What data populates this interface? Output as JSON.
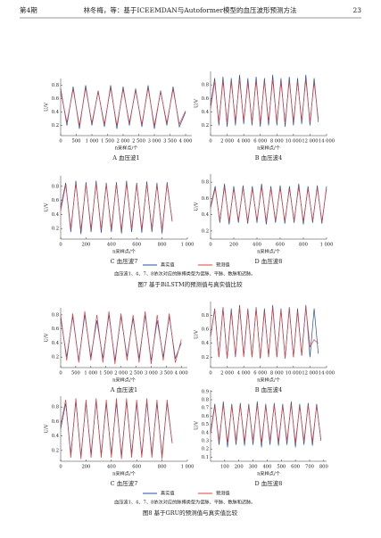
{
  "header": {
    "issue": "第4期",
    "title": "林冬梅，等：基于ICEEMDAN与Autoformer模型的血压波形预测方法",
    "page": "23"
  },
  "figures": [
    {
      "note": "血压波1、4、7、8依次对应的脉搏类型为促脉、平脉、数脉和迟脉。",
      "caption": "图7   基于BiLSTM的预测值与真实值比较"
    },
    {
      "note": "血压波1、4、7、8依次对应的脉搏类型为促脉、平脉、数脉和迟脉。",
      "caption": "图8   基于GRU的预测值与真实值比较"
    }
  ],
  "chart_data": [
    {
      "type": "line",
      "caption": "A   血压波1",
      "x_label": "n采样点/个",
      "y_label": "U/V",
      "x": [
        0,
        200,
        400,
        600,
        800,
        1000,
        1200,
        1400,
        1600,
        1800,
        2000,
        2200,
        2400,
        2600,
        2800,
        3000,
        3200,
        3400,
        3600,
        3800,
        4000
      ],
      "series": [
        {
          "name": "真实值",
          "color": "#2b4fa0",
          "values": [
            0.75,
            0.2,
            0.78,
            0.15,
            0.8,
            0.2,
            0.72,
            0.18,
            0.8,
            0.15,
            0.78,
            0.2,
            0.75,
            0.18,
            0.8,
            0.15,
            0.72,
            0.2,
            0.78,
            0.18,
            0.4
          ]
        },
        {
          "name": "预测值",
          "color": "#e0413f",
          "values": [
            0.7,
            0.25,
            0.74,
            0.2,
            0.76,
            0.24,
            0.7,
            0.22,
            0.76,
            0.2,
            0.74,
            0.24,
            0.72,
            0.22,
            0.76,
            0.2,
            0.7,
            0.24,
            0.74,
            0.22,
            0.42
          ]
        }
      ],
      "xlim": [
        0,
        4200
      ],
      "ylim": [
        0.05,
        0.9
      ],
      "xticks": [
        0,
        500,
        {
          "value": 1000,
          "label": "1 000"
        },
        {
          "value": 1500,
          "label": "1 500"
        },
        {
          "value": 2000,
          "label": "2 000"
        },
        {
          "value": 2500,
          "label": "2 500"
        },
        {
          "value": 3000,
          "label": "3 000"
        },
        {
          "value": 3500,
          "label": "3 500"
        },
        {
          "value": 4000,
          "label": "4 000"
        }
      ],
      "yticks": [
        0.2,
        0.4,
        0.6,
        0.8
      ]
    },
    {
      "type": "line",
      "caption": "B   血压波4",
      "x_label": "n采样点/个",
      "y_label": "U/V",
      "x": [
        0,
        500,
        1000,
        1500,
        2000,
        2500,
        3000,
        3500,
        4000,
        4500,
        5000,
        5500,
        6000,
        6500,
        7000,
        7500,
        8000,
        8500,
        9000,
        9500,
        10000,
        10500,
        11000,
        11500,
        12000,
        12500,
        13000
      ],
      "series": [
        {
          "name": "真实值",
          "color": "#2b4fa0",
          "values": [
            0.5,
            0.9,
            0.2,
            0.92,
            0.18,
            0.9,
            0.2,
            0.95,
            0.22,
            0.9,
            0.2,
            0.92,
            0.18,
            0.9,
            0.2,
            0.95,
            0.2,
            0.9,
            0.18,
            0.92,
            0.2,
            0.9,
            0.22,
            0.95,
            0.2,
            0.9,
            0.25
          ]
        },
        {
          "name": "预测值",
          "color": "#e0413f",
          "values": [
            0.45,
            0.85,
            0.25,
            0.86,
            0.24,
            0.85,
            0.26,
            0.88,
            0.27,
            0.84,
            0.25,
            0.86,
            0.24,
            0.85,
            0.26,
            0.88,
            0.25,
            0.84,
            0.24,
            0.86,
            0.26,
            0.85,
            0.27,
            0.88,
            0.25,
            0.84,
            0.3
          ]
        }
      ],
      "xlim": [
        0,
        14000
      ],
      "ylim": [
        0.05,
        1.0
      ],
      "xticks": [
        0,
        {
          "value": 2000,
          "label": "2 000"
        },
        {
          "value": 4000,
          "label": "4 000"
        },
        {
          "value": 6000,
          "label": "6 000"
        },
        {
          "value": 8000,
          "label": "8 000"
        },
        {
          "value": 10000,
          "label": "10 000"
        },
        {
          "value": 12000,
          "label": "12 000"
        },
        {
          "value": 14000,
          "label": "14 000"
        }
      ],
      "yticks": [
        0.2,
        0.4,
        0.6,
        0.8
      ]
    },
    {
      "type": "line",
      "caption": "C   血压波7",
      "x_label": "n采样点/个",
      "y_label": "U/V",
      "x": [
        0,
        40,
        80,
        120,
        160,
        200,
        240,
        280,
        320,
        360,
        400,
        440,
        480,
        520,
        560,
        600,
        640,
        680,
        720,
        760,
        800,
        840,
        880
      ],
      "series": [
        {
          "name": "真实值",
          "color": "#2b4fa0",
          "values": [
            0.5,
            0.85,
            0.15,
            0.88,
            0.12,
            0.86,
            0.15,
            0.88,
            0.14,
            0.85,
            0.15,
            0.86,
            0.13,
            0.88,
            0.15,
            0.85,
            0.14,
            0.87,
            0.15,
            0.85,
            0.13,
            0.86,
            0.3
          ]
        },
        {
          "name": "预测值",
          "color": "#e0413f",
          "values": [
            0.45,
            0.82,
            0.2,
            0.84,
            0.18,
            0.83,
            0.2,
            0.84,
            0.19,
            0.82,
            0.2,
            0.83,
            0.18,
            0.84,
            0.2,
            0.82,
            0.19,
            0.83,
            0.2,
            0.82,
            0.18,
            0.83,
            0.32
          ]
        }
      ],
      "xlim": [
        0,
        1000
      ],
      "ylim": [
        0.05,
        0.95
      ],
      "xticks": [
        0,
        200,
        400,
        600,
        800,
        {
          "value": 1000,
          "label": "1 000"
        }
      ],
      "yticks": [
        0.2,
        0.4,
        0.6,
        0.8
      ]
    },
    {
      "type": "line",
      "caption": "D   血压波8",
      "x_label": "n采样点/个",
      "y_label": "U/V",
      "x": [
        0,
        40,
        80,
        120,
        160,
        200,
        240,
        280,
        320,
        360,
        400,
        440,
        480,
        520,
        560,
        600,
        640,
        680,
        720,
        760,
        800,
        840,
        880,
        920,
        960,
        1000
      ],
      "series": [
        {
          "name": "真实值",
          "color": "#2b4fa0",
          "values": [
            0.5,
            0.75,
            0.3,
            0.78,
            0.28,
            0.75,
            0.3,
            0.76,
            0.29,
            0.75,
            0.3,
            0.78,
            0.28,
            0.75,
            0.3,
            0.76,
            0.29,
            0.75,
            0.3,
            0.78,
            0.28,
            0.75,
            0.3,
            0.76,
            0.29,
            0.75
          ]
        },
        {
          "name": "预测值",
          "color": "#e0413f",
          "values": [
            0.48,
            0.72,
            0.33,
            0.74,
            0.32,
            0.72,
            0.33,
            0.73,
            0.32,
            0.72,
            0.33,
            0.74,
            0.32,
            0.72,
            0.33,
            0.73,
            0.32,
            0.72,
            0.33,
            0.74,
            0.32,
            0.72,
            0.33,
            0.73,
            0.32,
            0.72
          ]
        }
      ],
      "xlim": [
        0,
        1000
      ],
      "ylim": [
        0.1,
        0.9
      ],
      "xticks": [
        0,
        200,
        400,
        600,
        800,
        {
          "value": 1000,
          "label": "1 000"
        }
      ],
      "yticks": [
        0.2,
        0.4,
        0.6,
        0.8
      ]
    },
    {
      "type": "line",
      "caption": "A   血压波1",
      "x_label": "n采样点/个",
      "y_label": "U/V",
      "x": [
        0,
        200,
        400,
        600,
        800,
        1000,
        1200,
        1400,
        1600,
        1800,
        2000,
        2200,
        2400,
        2600,
        2800,
        3000,
        3200,
        3400,
        3600,
        3800,
        4000
      ],
      "series": [
        {
          "name": "真实值",
          "color": "#2b4fa0",
          "values": [
            0.75,
            0.2,
            0.78,
            0.15,
            0.8,
            0.2,
            0.72,
            0.18,
            0.8,
            0.15,
            0.78,
            0.2,
            0.75,
            0.18,
            0.8,
            0.15,
            0.72,
            0.2,
            0.78,
            0.18,
            0.4
          ]
        },
        {
          "name": "预测值",
          "color": "#e0413f",
          "values": [
            0.8,
            0.15,
            0.82,
            0.12,
            0.85,
            0.15,
            0.8,
            0.12,
            0.85,
            0.1,
            0.82,
            0.15,
            0.8,
            0.12,
            0.85,
            0.1,
            0.8,
            0.15,
            0.82,
            0.12,
            0.45
          ]
        }
      ],
      "xlim": [
        0,
        4200
      ],
      "ylim": [
        0.05,
        0.9
      ],
      "xticks": [
        0,
        500,
        {
          "value": 1000,
          "label": "1 000"
        },
        {
          "value": 1500,
          "label": "1 500"
        },
        {
          "value": 2000,
          "label": "2 000"
        },
        {
          "value": 2500,
          "label": "2 500"
        },
        {
          "value": 3000,
          "label": "3 000"
        },
        {
          "value": 3500,
          "label": "3 500"
        },
        {
          "value": 4000,
          "label": "4 000"
        }
      ],
      "yticks": [
        0.2,
        0.4,
        0.6,
        0.8
      ]
    },
    {
      "type": "line",
      "caption": "B   血压波4",
      "x_label": "n采样点/个",
      "y_label": "U/V",
      "x": [
        0,
        500,
        1000,
        1500,
        2000,
        2500,
        3000,
        3500,
        4000,
        4500,
        5000,
        5500,
        6000,
        6500,
        7000,
        7500,
        8000,
        8500,
        9000,
        9500,
        10000,
        10500,
        11000,
        11500,
        12000,
        12500,
        13000
      ],
      "series": [
        {
          "name": "真实值",
          "color": "#2b4fa0",
          "values": [
            0.5,
            0.9,
            0.2,
            0.92,
            0.18,
            0.9,
            0.2,
            0.95,
            0.22,
            0.9,
            0.2,
            0.92,
            0.18,
            0.9,
            0.2,
            0.95,
            0.2,
            0.9,
            0.18,
            0.92,
            0.2,
            0.9,
            0.22,
            0.95,
            0.2,
            0.9,
            0.25
          ]
        },
        {
          "name": "预测值",
          "color": "#e0413f",
          "values": [
            0.5,
            0.88,
            0.2,
            0.9,
            0.18,
            0.86,
            0.22,
            0.92,
            0.2,
            0.88,
            0.2,
            0.9,
            0.18,
            0.86,
            0.22,
            0.92,
            0.2,
            0.88,
            0.18,
            0.9,
            0.2,
            0.86,
            0.22,
            0.92,
            0.35,
            0.45,
            0.4
          ]
        }
      ],
      "xlim": [
        0,
        14000
      ],
      "ylim": [
        0.05,
        1.0
      ],
      "xticks": [
        0,
        {
          "value": 2000,
          "label": "2 000"
        },
        {
          "value": 4000,
          "label": "4 000"
        },
        {
          "value": 6000,
          "label": "6 000"
        },
        {
          "value": 8000,
          "label": "8 000"
        },
        {
          "value": 10000,
          "label": "10 000"
        },
        {
          "value": 12000,
          "label": "12 000"
        },
        {
          "value": 14000,
          "label": "14 000"
        }
      ],
      "yticks": [
        0.2,
        0.4,
        0.6,
        0.8
      ]
    },
    {
      "type": "line",
      "caption": "C   血压波7",
      "x_label": "n采样点/个",
      "y_label": "U/V",
      "x": [
        0,
        40,
        80,
        120,
        160,
        200,
        240,
        280,
        320,
        360,
        400,
        440,
        480,
        520,
        560,
        600,
        640,
        680,
        720,
        760,
        800,
        840,
        880
      ],
      "series": [
        {
          "name": "真实值",
          "color": "#2b4fa0",
          "values": [
            0.5,
            0.85,
            0.15,
            0.88,
            0.12,
            0.86,
            0.15,
            0.88,
            0.14,
            0.85,
            0.15,
            0.86,
            0.13,
            0.88,
            0.15,
            0.85,
            0.14,
            0.87,
            0.15,
            0.85,
            0.13,
            0.86,
            0.3
          ]
        },
        {
          "name": "预测值",
          "color": "#e0413f",
          "values": [
            0.55,
            0.9,
            0.1,
            0.92,
            0.08,
            0.9,
            0.1,
            0.92,
            0.1,
            0.9,
            0.1,
            0.92,
            0.08,
            0.92,
            0.1,
            0.9,
            0.1,
            0.92,
            0.1,
            0.9,
            0.08,
            0.9,
            0.3
          ]
        }
      ],
      "xlim": [
        0,
        1000
      ],
      "ylim": [
        0.05,
        0.95
      ],
      "xticks": [
        0,
        200,
        400,
        600,
        800,
        {
          "value": 1000,
          "label": "1 000"
        }
      ],
      "yticks": [
        0.2,
        0.4,
        0.6,
        0.8
      ]
    },
    {
      "type": "line",
      "caption": "D   血压波8",
      "x_label": "n采样点/个",
      "y_label": "U/V",
      "x": [
        0,
        30,
        60,
        90,
        120,
        150,
        180,
        210,
        240,
        270,
        300,
        330,
        360,
        390,
        420,
        450,
        480,
        510,
        540,
        570,
        600,
        630,
        660,
        690,
        720,
        750,
        780
      ],
      "series": [
        {
          "name": "真实值",
          "color": "#2b4fa0",
          "values": [
            0.4,
            0.75,
            0.25,
            0.78,
            0.22,
            0.75,
            0.25,
            0.76,
            0.24,
            0.75,
            0.25,
            0.78,
            0.22,
            0.75,
            0.25,
            0.76,
            0.24,
            0.75,
            0.25,
            0.78,
            0.22,
            0.75,
            0.25,
            0.76,
            0.24,
            0.75,
            0.3
          ]
        },
        {
          "name": "预测值",
          "color": "#e0413f",
          "values": [
            0.38,
            0.72,
            0.3,
            0.74,
            0.28,
            0.72,
            0.3,
            0.73,
            0.29,
            0.72,
            0.3,
            0.74,
            0.28,
            0.72,
            0.3,
            0.73,
            0.29,
            0.72,
            0.3,
            0.74,
            0.28,
            0.72,
            0.3,
            0.73,
            0.29,
            0.72,
            0.32
          ]
        }
      ],
      "xlim": [
        0,
        820
      ],
      "ylim": [
        0.05,
        0.92
      ],
      "xticks": [
        100,
        200,
        300,
        400,
        500,
        600,
        700,
        800
      ],
      "yticks": [
        0.1,
        0.2,
        0.3,
        0.4,
        0.5,
        0.6,
        0.7,
        0.8,
        0.9
      ]
    }
  ]
}
